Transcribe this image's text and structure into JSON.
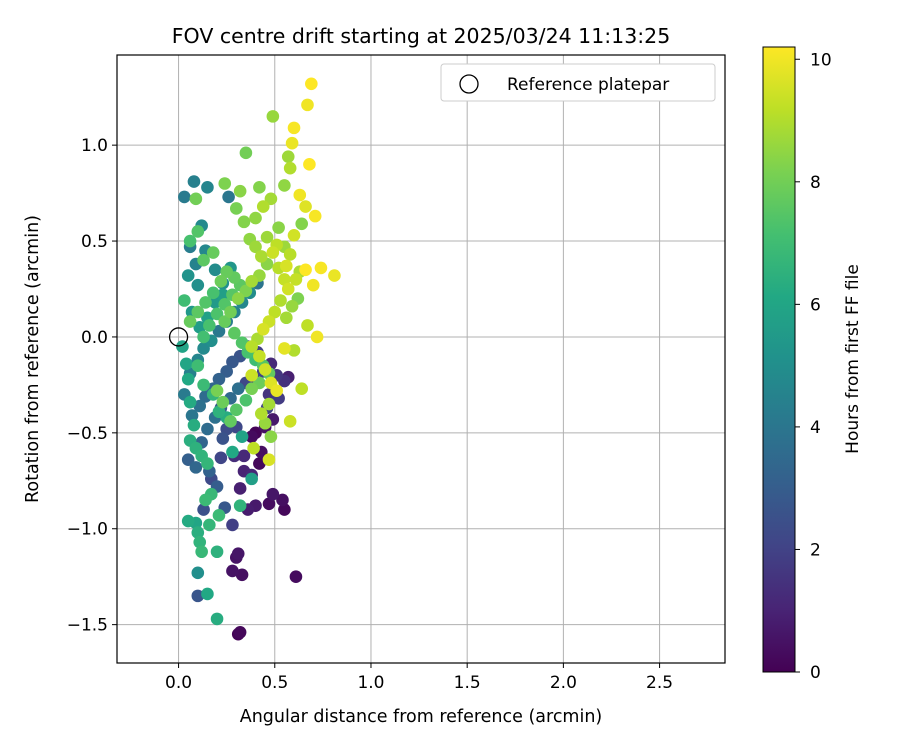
{
  "chart_data": {
    "type": "scatter",
    "title": "FOV centre drift starting at 2025/03/24 11:13:25",
    "xlabel": "Angular distance from reference (arcmin)",
    "ylabel": "Rotation from reference (arcmin)",
    "xlim": [
      -0.32,
      2.84
    ],
    "ylim": [
      -1.7,
      1.47
    ],
    "xticks": [
      0.0,
      0.5,
      1.0,
      1.5,
      2.0,
      2.5
    ],
    "xtick_labels": [
      "0.0",
      "0.5",
      "1.0",
      "1.5",
      "2.0",
      "2.5"
    ],
    "yticks": [
      -1.5,
      -1.0,
      -0.5,
      0.0,
      0.5,
      1.0
    ],
    "ytick_labels": [
      "−1.5",
      "−1.0",
      "−0.5",
      "0.0",
      "0.5",
      "1.0"
    ],
    "grid": true,
    "legend": {
      "placement": "top-right",
      "entries": [
        "Reference platepar"
      ]
    },
    "reference_point": {
      "x": 0.0,
      "y": 0.0,
      "label": "Reference platepar"
    },
    "colorbar": {
      "label": "Hours from first FF file",
      "range": [
        0,
        10.2
      ],
      "ticks": [
        0,
        2,
        4,
        6,
        8,
        10
      ],
      "tick_labels": [
        "0",
        "2",
        "4",
        "6",
        "8",
        "10"
      ],
      "colormap": "viridis"
    },
    "points": [
      [
        0.31,
        -1.55,
        0.1
      ],
      [
        0.32,
        -1.54,
        0.2
      ],
      [
        0.61,
        -1.25,
        0.3
      ],
      [
        0.33,
        -1.24,
        0.4
      ],
      [
        0.28,
        -1.22,
        0.5
      ],
      [
        0.31,
        -1.13,
        0.6
      ],
      [
        0.3,
        -1.15,
        0.5
      ],
      [
        0.55,
        -0.9,
        0.2
      ],
      [
        0.54,
        -0.85,
        0.4
      ],
      [
        0.49,
        -0.82,
        0.6
      ],
      [
        0.47,
        -0.87,
        0.3
      ],
      [
        0.4,
        -0.88,
        0.7
      ],
      [
        0.36,
        -0.9,
        0.8
      ],
      [
        0.32,
        -0.79,
        0.9
      ],
      [
        0.34,
        -0.7,
        1.0
      ],
      [
        0.38,
        -0.72,
        1.1
      ],
      [
        0.42,
        -0.66,
        0.2
      ],
      [
        0.43,
        -0.6,
        0.4
      ],
      [
        0.34,
        -0.62,
        1.2
      ],
      [
        0.29,
        -0.62,
        1.3
      ],
      [
        0.4,
        -0.5,
        0.1
      ],
      [
        0.38,
        -0.52,
        0.3
      ],
      [
        0.45,
        -0.47,
        0.5
      ],
      [
        0.49,
        -0.43,
        0.7
      ],
      [
        0.57,
        -0.21,
        0.9
      ],
      [
        0.55,
        -0.23,
        1.4
      ],
      [
        0.51,
        -0.2,
        1.6
      ],
      [
        0.52,
        -0.32,
        1.8
      ],
      [
        0.47,
        -0.3,
        1.5
      ],
      [
        0.46,
        -0.37,
        2.0
      ],
      [
        0.3,
        -0.47,
        2.2
      ],
      [
        0.25,
        -0.48,
        2.4
      ],
      [
        0.23,
        -0.53,
        2.6
      ],
      [
        0.22,
        -0.63,
        2.1
      ],
      [
        0.17,
        -0.74,
        2.3
      ],
      [
        0.13,
        -0.9,
        2.5
      ],
      [
        0.1,
        -1.35,
        2.7
      ],
      [
        0.28,
        -0.98,
        1.9
      ],
      [
        0.24,
        -0.89,
        2.8
      ],
      [
        0.2,
        -0.78,
        3.0
      ],
      [
        0.16,
        -0.7,
        3.2
      ],
      [
        0.09,
        -0.68,
        3.4
      ],
      [
        0.05,
        -0.64,
        3.1
      ],
      [
        0.12,
        -0.55,
        3.3
      ],
      [
        0.15,
        -0.48,
        3.6
      ],
      [
        0.19,
        -0.42,
        3.8
      ],
      [
        0.22,
        -0.37,
        2.9
      ],
      [
        0.27,
        -0.32,
        3.5
      ],
      [
        0.31,
        -0.27,
        3.7
      ],
      [
        0.35,
        -0.24,
        2.2
      ],
      [
        0.39,
        -0.22,
        1.7
      ],
      [
        0.44,
        -0.18,
        2.0
      ],
      [
        0.48,
        -0.14,
        1.2
      ],
      [
        0.41,
        -0.08,
        1.9
      ],
      [
        0.36,
        -0.05,
        2.4
      ],
      [
        0.32,
        -0.1,
        2.6
      ],
      [
        0.28,
        -0.13,
        2.8
      ],
      [
        0.25,
        -0.18,
        3.0
      ],
      [
        0.21,
        -0.22,
        3.2
      ],
      [
        0.18,
        -0.27,
        3.4
      ],
      [
        0.14,
        -0.31,
        3.6
      ],
      [
        0.11,
        -0.36,
        3.8
      ],
      [
        0.07,
        -0.41,
        4.0
      ],
      [
        0.03,
        -0.3,
        4.2
      ],
      [
        0.06,
        -0.19,
        4.4
      ],
      [
        0.1,
        -0.12,
        4.6
      ],
      [
        0.13,
        -0.06,
        4.8
      ],
      [
        0.17,
        -0.02,
        5.0
      ],
      [
        0.21,
        0.03,
        4.1
      ],
      [
        0.25,
        0.08,
        4.3
      ],
      [
        0.29,
        0.13,
        4.5
      ],
      [
        0.33,
        0.18,
        4.7
      ],
      [
        0.37,
        0.23,
        4.9
      ],
      [
        0.41,
        0.28,
        3.9
      ],
      [
        0.26,
        0.73,
        4.0
      ],
      [
        0.03,
        0.73,
        4.2
      ],
      [
        0.08,
        0.81,
        4.4
      ],
      [
        0.15,
        0.78,
        4.6
      ],
      [
        0.12,
        0.58,
        4.8
      ],
      [
        0.06,
        0.47,
        4.3
      ],
      [
        0.09,
        0.38,
        4.5
      ],
      [
        0.14,
        0.45,
        4.7
      ],
      [
        0.19,
        0.35,
        4.9
      ],
      [
        0.23,
        0.28,
        5.1
      ],
      [
        0.27,
        0.36,
        5.3
      ],
      [
        0.1,
        0.27,
        5.0
      ],
      [
        0.05,
        0.32,
        5.2
      ],
      [
        0.07,
        0.13,
        5.4
      ],
      [
        0.11,
        0.05,
        5.6
      ],
      [
        0.15,
        0.1,
        5.8
      ],
      [
        0.19,
        0.18,
        5.5
      ],
      [
        0.23,
        0.22,
        5.7
      ],
      [
        0.02,
        -0.05,
        5.9
      ],
      [
        0.04,
        -0.14,
        6.0
      ],
      [
        0.05,
        -0.22,
        6.1
      ],
      [
        0.06,
        -0.34,
        6.2
      ],
      [
        0.08,
        -0.46,
        6.3
      ],
      [
        0.06,
        -0.54,
        6.4
      ],
      [
        0.09,
        -0.58,
        6.5
      ],
      [
        0.12,
        -0.62,
        6.6
      ],
      [
        0.15,
        -0.66,
        6.7
      ],
      [
        0.17,
        -0.82,
        6.8
      ],
      [
        0.14,
        -0.85,
        6.9
      ],
      [
        0.09,
        -0.97,
        6.0
      ],
      [
        0.05,
        -0.96,
        6.2
      ],
      [
        0.1,
        -1.02,
        6.4
      ],
      [
        0.11,
        -1.07,
        6.6
      ],
      [
        0.12,
        -1.12,
        6.8
      ],
      [
        0.1,
        -1.23,
        5.0
      ],
      [
        0.15,
        -1.34,
        6.1
      ],
      [
        0.2,
        -1.47,
        6.3
      ],
      [
        0.2,
        -1.12,
        6.5
      ],
      [
        0.16,
        -0.98,
        6.7
      ],
      [
        0.21,
        -0.93,
        6.9
      ],
      [
        0.32,
        -0.88,
        6.6
      ],
      [
        0.38,
        -0.74,
        5.7
      ],
      [
        0.33,
        -0.52,
        5.9
      ],
      [
        0.28,
        -0.6,
        6.1
      ],
      [
        0.25,
        -0.42,
        6.3
      ],
      [
        0.21,
        -0.39,
        6.5
      ],
      [
        0.18,
        -0.3,
        6.7
      ],
      [
        0.13,
        -0.25,
        6.9
      ],
      [
        0.1,
        -0.15,
        7.0
      ],
      [
        0.13,
        0.0,
        7.1
      ],
      [
        0.16,
        0.06,
        7.2
      ],
      [
        0.2,
        0.12,
        7.3
      ],
      [
        0.24,
        0.17,
        7.4
      ],
      [
        0.28,
        0.22,
        7.5
      ],
      [
        0.32,
        0.27,
        7.6
      ],
      [
        0.29,
        0.31,
        7.7
      ],
      [
        0.25,
        0.34,
        7.8
      ],
      [
        0.22,
        0.29,
        7.9
      ],
      [
        0.18,
        0.23,
        7.2
      ],
      [
        0.14,
        0.18,
        7.4
      ],
      [
        0.1,
        0.13,
        7.6
      ],
      [
        0.06,
        0.08,
        7.8
      ],
      [
        0.03,
        0.19,
        7.0
      ],
      [
        0.06,
        0.5,
        7.2
      ],
      [
        0.1,
        0.55,
        7.4
      ],
      [
        0.13,
        0.4,
        7.6
      ],
      [
        0.18,
        0.44,
        7.8
      ],
      [
        0.09,
        0.72,
        8.0
      ],
      [
        0.24,
        0.8,
        8.2
      ],
      [
        0.32,
        0.76,
        8.4
      ],
      [
        0.35,
        0.96,
        8.0
      ],
      [
        0.3,
        0.67,
        8.1
      ],
      [
        0.34,
        0.6,
        8.3
      ],
      [
        0.37,
        0.51,
        8.5
      ],
      [
        0.4,
        0.47,
        8.7
      ],
      [
        0.43,
        0.42,
        8.9
      ],
      [
        0.46,
        0.38,
        8.4
      ],
      [
        0.42,
        0.32,
        8.6
      ],
      [
        0.38,
        0.29,
        8.8
      ],
      [
        0.35,
        0.24,
        8.2
      ],
      [
        0.31,
        0.2,
        8.4
      ],
      [
        0.27,
        0.13,
        8.0
      ],
      [
        0.24,
        0.08,
        7.8
      ],
      [
        0.29,
        0.02,
        7.6
      ],
      [
        0.33,
        -0.03,
        7.4
      ],
      [
        0.36,
        -0.08,
        7.2
      ],
      [
        0.4,
        -0.12,
        7.0
      ],
      [
        0.44,
        -0.15,
        7.5
      ],
      [
        0.47,
        -0.19,
        7.7
      ],
      [
        0.42,
        -0.24,
        7.9
      ],
      [
        0.38,
        -0.27,
        8.1
      ],
      [
        0.35,
        -0.33,
        7.3
      ],
      [
        0.3,
        -0.38,
        7.5
      ],
      [
        0.27,
        -0.44,
        7.7
      ],
      [
        0.23,
        -0.34,
        7.9
      ],
      [
        0.2,
        -0.28,
        8.1
      ],
      [
        0.42,
        0.78,
        8.3
      ],
      [
        0.49,
        1.15,
        8.6
      ],
      [
        0.48,
        0.72,
        8.8
      ],
      [
        0.44,
        0.68,
        9.0
      ],
      [
        0.4,
        0.62,
        8.5
      ],
      [
        0.46,
        0.52,
        8.7
      ],
      [
        0.51,
        0.48,
        9.2
      ],
      [
        0.49,
        0.44,
        9.4
      ],
      [
        0.52,
        0.36,
        9.1
      ],
      [
        0.55,
        0.3,
        9.3
      ],
      [
        0.57,
        0.25,
        9.5
      ],
      [
        0.53,
        0.19,
        9.0
      ],
      [
        0.5,
        0.13,
        9.2
      ],
      [
        0.47,
        0.08,
        9.4
      ],
      [
        0.44,
        0.04,
        9.6
      ],
      [
        0.41,
        -0.01,
        8.9
      ],
      [
        0.38,
        -0.05,
        9.1
      ],
      [
        0.42,
        -0.1,
        9.3
      ],
      [
        0.45,
        -0.17,
        9.5
      ],
      [
        0.48,
        -0.24,
        9.7
      ],
      [
        0.51,
        -0.28,
        9.9
      ],
      [
        0.47,
        -0.35,
        8.8
      ],
      [
        0.43,
        -0.4,
        9.0
      ],
      [
        0.45,
        -0.45,
        8.6
      ],
      [
        0.48,
        -0.52,
        8.4
      ],
      [
        0.47,
        -0.64,
        9.6
      ],
      [
        0.39,
        -0.58,
        9.2
      ],
      [
        0.38,
        -0.2,
        9.4
      ],
      [
        0.55,
        -0.06,
        9.8
      ],
      [
        0.6,
        -0.07,
        9.0
      ],
      [
        0.64,
        -0.27,
        9.2
      ],
      [
        0.58,
        -0.44,
        9.4
      ],
      [
        0.56,
        0.1,
        8.8
      ],
      [
        0.59,
        0.16,
        8.6
      ],
      [
        0.62,
        0.2,
        8.2
      ],
      [
        0.61,
        0.3,
        9.3
      ],
      [
        0.63,
        0.34,
        8.9
      ],
      [
        0.58,
        0.43,
        9.1
      ],
      [
        0.55,
        0.47,
        8.7
      ],
      [
        0.6,
        0.53,
        9.5
      ],
      [
        0.64,
        0.59,
        8.3
      ],
      [
        0.66,
        0.68,
        9.7
      ],
      [
        0.63,
        0.74,
        10.0
      ],
      [
        0.55,
        0.79,
        8.5
      ],
      [
        0.58,
        0.88,
        9.0
      ],
      [
        0.57,
        0.94,
        8.7
      ],
      [
        0.59,
        1.01,
        9.9
      ],
      [
        0.6,
        1.09,
        10.1
      ],
      [
        0.67,
        1.21,
        10.0
      ],
      [
        0.69,
        1.32,
        10.2
      ],
      [
        0.68,
        0.9,
        10.2
      ],
      [
        0.71,
        0.63,
        10.1
      ],
      [
        0.66,
        0.35,
        10.2
      ],
      [
        0.7,
        0.27,
        10.0
      ],
      [
        0.74,
        0.36,
        10.1
      ],
      [
        0.81,
        0.32,
        9.9
      ],
      [
        0.67,
        0.06,
        9.2
      ],
      [
        0.72,
        0.0,
        10.0
      ],
      [
        0.56,
        0.37,
        9.6
      ],
      [
        0.52,
        0.57,
        8.4
      ]
    ]
  }
}
